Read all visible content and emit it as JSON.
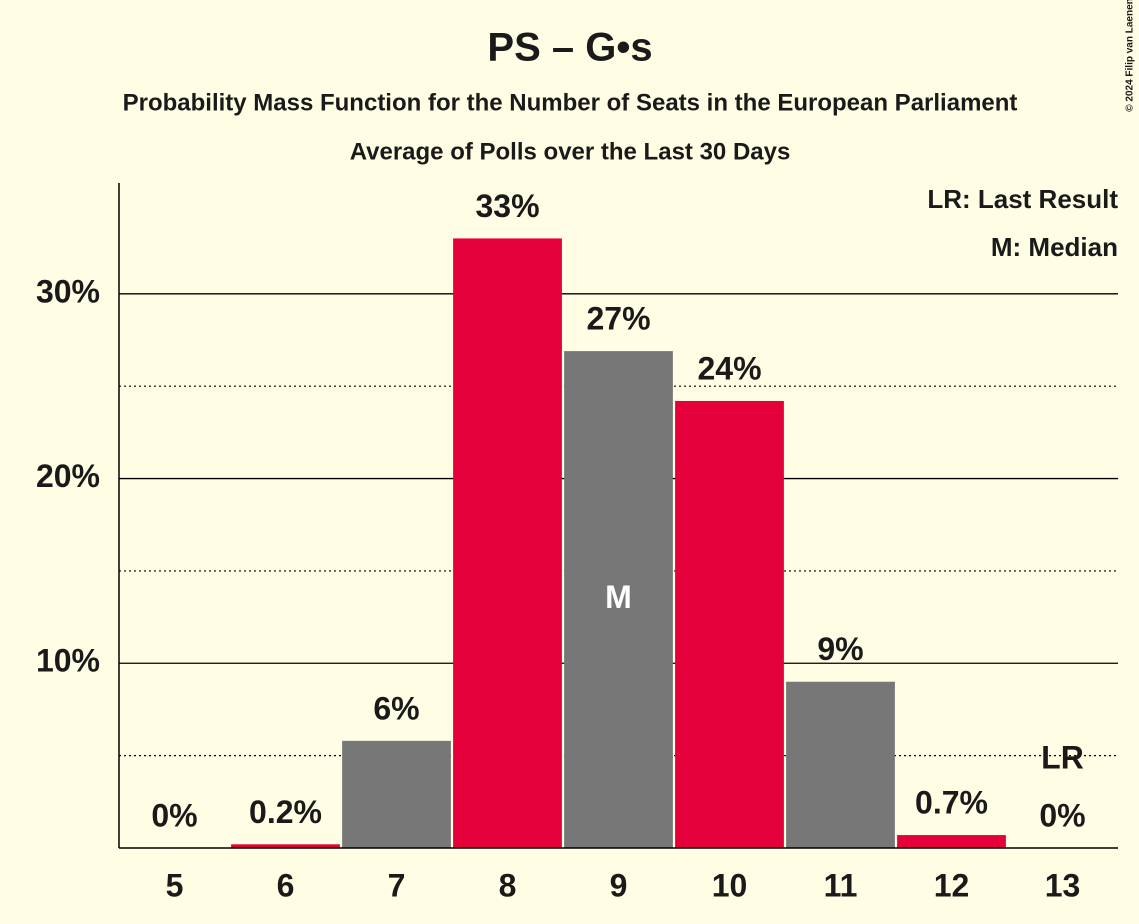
{
  "chart_data": {
    "type": "bar",
    "title": "PS – G•s",
    "subtitle": "Probability Mass Function for the Number of Seats in the European Parliament",
    "subtitle2": "Average of Polls over the Last 30 Days",
    "credit": "© 2024 Filip van Laenen",
    "categories": [
      "5",
      "6",
      "7",
      "8",
      "9",
      "10",
      "11",
      "12",
      "13"
    ],
    "values": [
      0,
      0.2,
      5.8,
      33,
      26.9,
      24.2,
      9,
      0.7,
      0
    ],
    "value_labels": [
      "0%",
      "0.2%",
      "6%",
      "33%",
      "27%",
      "24%",
      "9%",
      "0.7%",
      "0%"
    ],
    "colors": [
      "#e4003b",
      "#e4003b",
      "#777777",
      "#e4003b",
      "#777777",
      "#e4003b",
      "#777777",
      "#e4003b",
      "#e4003b"
    ],
    "ylim": [
      0,
      36
    ],
    "yticks": [
      {
        "value": 10,
        "label": "10%"
      },
      {
        "value": 20,
        "label": "20%"
      },
      {
        "value": 30,
        "label": "30%"
      }
    ],
    "minor_yticks": [
      5,
      15,
      25
    ],
    "grid": true,
    "markers": [
      {
        "label": "M",
        "category": "9"
      },
      {
        "label": "LR",
        "category": "13"
      }
    ],
    "legend": [
      "LR: Last Result",
      "M: Median"
    ],
    "legend_position": "upper right"
  }
}
